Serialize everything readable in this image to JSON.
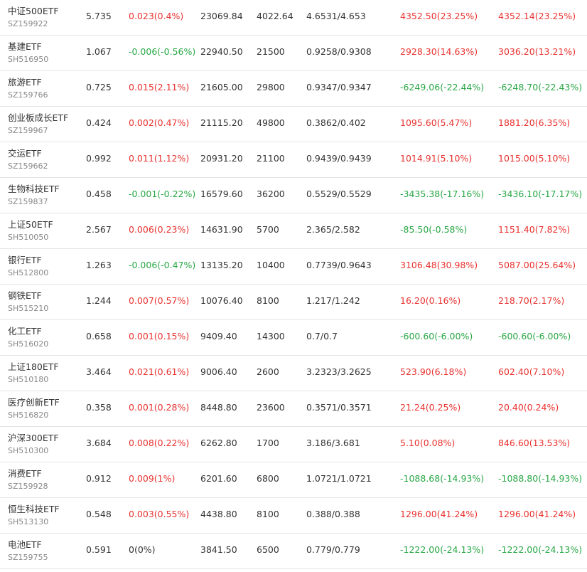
{
  "colors": {
    "up": "#e8322f",
    "down": "#28a745",
    "neutral": "#333333",
    "code": "#888888",
    "divider": "#e4e4e4"
  },
  "rows": [
    {
      "name": "中证500ETF",
      "code": "SZ159922",
      "price": "5.735",
      "change": "0.023(0.4%)",
      "change_dir": "up",
      "amount": "23069.84",
      "volume": "4022.64",
      "range": "4.6531/4.653",
      "pl1": "4352.50(23.25%)",
      "pl1_dir": "up",
      "pl2": "4352.14(23.25%)",
      "pl2_dir": "up"
    },
    {
      "name": "基建ETF",
      "code": "SH516950",
      "price": "1.067",
      "change": "-0.006(-0.56%)",
      "change_dir": "down",
      "amount": "22940.50",
      "volume": "21500",
      "range": "0.9258/0.9308",
      "pl1": "2928.30(14.63%)",
      "pl1_dir": "up",
      "pl2": "3036.20(13.21%)",
      "pl2_dir": "up"
    },
    {
      "name": "旅游ETF",
      "code": "SZ159766",
      "price": "0.725",
      "change": "0.015(2.11%)",
      "change_dir": "up",
      "amount": "21605.00",
      "volume": "29800",
      "range": "0.9347/0.9347",
      "pl1": "-6249.06(-22.44%)",
      "pl1_dir": "down",
      "pl2": "-6248.70(-22.43%)",
      "pl2_dir": "down"
    },
    {
      "name": "创业板成长ETF",
      "code": "SZ159967",
      "price": "0.424",
      "change": "0.002(0.47%)",
      "change_dir": "up",
      "amount": "21115.20",
      "volume": "49800",
      "range": "0.3862/0.402",
      "pl1": "1095.60(5.47%)",
      "pl1_dir": "up",
      "pl2": "1881.20(6.35%)",
      "pl2_dir": "up"
    },
    {
      "name": "交运ETF",
      "code": "SZ159662",
      "price": "0.992",
      "change": "0.011(1.12%)",
      "change_dir": "up",
      "amount": "20931.20",
      "volume": "21100",
      "range": "0.9439/0.9439",
      "pl1": "1014.91(5.10%)",
      "pl1_dir": "up",
      "pl2": "1015.00(5.10%)",
      "pl2_dir": "up"
    },
    {
      "name": "生物科技ETF",
      "code": "SZ159837",
      "price": "0.458",
      "change": "-0.001(-0.22%)",
      "change_dir": "down",
      "amount": "16579.60",
      "volume": "36200",
      "range": "0.5529/0.5529",
      "pl1": "-3435.38(-17.16%)",
      "pl1_dir": "down",
      "pl2": "-3436.10(-17.17%)",
      "pl2_dir": "down"
    },
    {
      "name": "上证50ETF",
      "code": "SH510050",
      "price": "2.567",
      "change": "0.006(0.23%)",
      "change_dir": "up",
      "amount": "14631.90",
      "volume": "5700",
      "range": "2.365/2.582",
      "pl1": "-85.50(-0.58%)",
      "pl1_dir": "down",
      "pl2": "1151.40(7.82%)",
      "pl2_dir": "up"
    },
    {
      "name": "银行ETF",
      "code": "SH512800",
      "price": "1.263",
      "change": "-0.006(-0.47%)",
      "change_dir": "down",
      "amount": "13135.20",
      "volume": "10400",
      "range": "0.7739/0.9643",
      "pl1": "3106.48(30.98%)",
      "pl1_dir": "up",
      "pl2": "5087.00(25.64%)",
      "pl2_dir": "up"
    },
    {
      "name": "钢铁ETF",
      "code": "SH515210",
      "price": "1.244",
      "change": "0.007(0.57%)",
      "change_dir": "up",
      "amount": "10076.40",
      "volume": "8100",
      "range": "1.217/1.242",
      "pl1": "16.20(0.16%)",
      "pl1_dir": "up",
      "pl2": "218.70(2.17%)",
      "pl2_dir": "up"
    },
    {
      "name": "化工ETF",
      "code": "SH516020",
      "price": "0.658",
      "change": "0.001(0.15%)",
      "change_dir": "up",
      "amount": "9409.40",
      "volume": "14300",
      "range": "0.7/0.7",
      "pl1": "-600.60(-6.00%)",
      "pl1_dir": "down",
      "pl2": "-600.60(-6.00%)",
      "pl2_dir": "down"
    },
    {
      "name": "上证180ETF",
      "code": "SH510180",
      "price": "3.464",
      "change": "0.021(0.61%)",
      "change_dir": "up",
      "amount": "9006.40",
      "volume": "2600",
      "range": "3.2323/3.2625",
      "pl1": "523.90(6.18%)",
      "pl1_dir": "up",
      "pl2": "602.40(7.10%)",
      "pl2_dir": "up"
    },
    {
      "name": "医疗创新ETF",
      "code": "SH516820",
      "price": "0.358",
      "change": "0.001(0.28%)",
      "change_dir": "up",
      "amount": "8448.80",
      "volume": "23600",
      "range": "0.3571/0.3571",
      "pl1": "21.24(0.25%)",
      "pl1_dir": "up",
      "pl2": "20.40(0.24%)",
      "pl2_dir": "up"
    },
    {
      "name": "沪深300ETF",
      "code": "SH510300",
      "price": "3.684",
      "change": "0.008(0.22%)",
      "change_dir": "up",
      "amount": "6262.80",
      "volume": "1700",
      "range": "3.186/3.681",
      "pl1": "5.10(0.08%)",
      "pl1_dir": "up",
      "pl2": "846.60(13.53%)",
      "pl2_dir": "up"
    },
    {
      "name": "消费ETF",
      "code": "SZ159928",
      "price": "0.912",
      "change": "0.009(1%)",
      "change_dir": "up",
      "amount": "6201.60",
      "volume": "6800",
      "range": "1.0721/1.0721",
      "pl1": "-1088.68(-14.93%)",
      "pl1_dir": "down",
      "pl2": "-1088.80(-14.93%)",
      "pl2_dir": "down"
    },
    {
      "name": "恒生科技ETF",
      "code": "SH513130",
      "price": "0.548",
      "change": "0.003(0.55%)",
      "change_dir": "up",
      "amount": "4438.80",
      "volume": "8100",
      "range": "0.388/0.388",
      "pl1": "1296.00(41.24%)",
      "pl1_dir": "up",
      "pl2": "1296.00(41.24%)",
      "pl2_dir": "up"
    },
    {
      "name": "电池ETF",
      "code": "SZ159755",
      "price": "0.591",
      "change": "0(0%)",
      "change_dir": "flat",
      "amount": "3841.50",
      "volume": "6500",
      "range": "0.779/0.779",
      "pl1": "-1222.00(-24.13%)",
      "pl1_dir": "down",
      "pl2": "-1222.00(-24.13%)",
      "pl2_dir": "down"
    }
  ]
}
